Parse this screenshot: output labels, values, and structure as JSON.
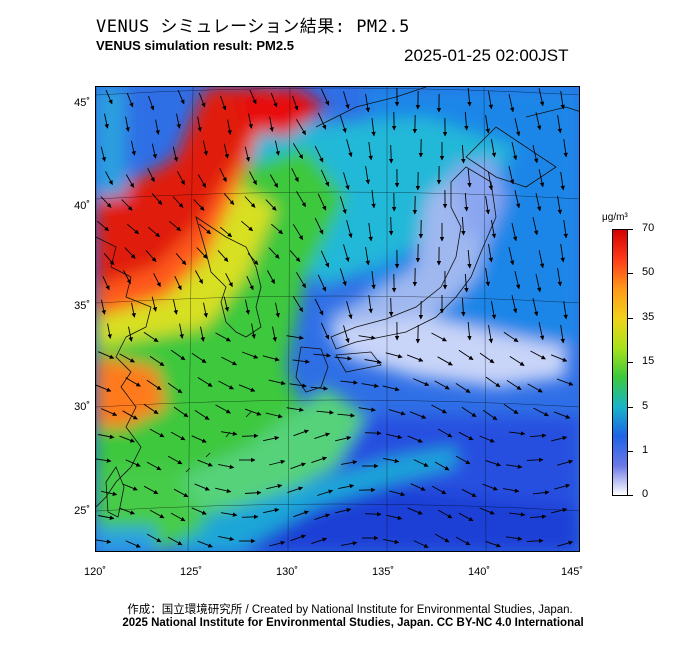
{
  "header": {
    "title_jp": "VENUS シミュレーション結果: PM2.5",
    "title_en": "VENUS simulation result: PM2.5",
    "timestamp": "2025-01-25 02:00JST"
  },
  "map": {
    "pollutant": "PM2.5",
    "lon_range": [
      120,
      145
    ],
    "lat_range": [
      23,
      46
    ],
    "lat_ticks": [
      {
        "value": 45,
        "label": "45˚"
      },
      {
        "value": 40,
        "label": "40˚"
      },
      {
        "value": 35,
        "label": "35˚"
      },
      {
        "value": 30,
        "label": "30˚"
      },
      {
        "value": 25,
        "label": "25˚"
      }
    ],
    "lon_ticks": [
      {
        "value": 120,
        "label": "120˚"
      },
      {
        "value": 125,
        "label": "125˚"
      },
      {
        "value": 130,
        "label": "130˚"
      },
      {
        "value": 135,
        "label": "135˚"
      },
      {
        "value": 140,
        "label": "140˚"
      },
      {
        "value": 145,
        "label": "145˚"
      }
    ],
    "wind_field": "northwesterly monsoon over Sea of Japan and East China Sea; westerly south of Japan"
  },
  "colorbar": {
    "unit": "μg/m³",
    "labels": [
      "70",
      "50",
      "35",
      "15",
      "5",
      "1",
      "0"
    ],
    "colors": [
      "#d40000",
      "#ff3b1a",
      "#ff9a1a",
      "#f2d21a",
      "#a8e21a",
      "#3cc83c",
      "#18b4c8",
      "#1e64e6",
      "#6a78e6",
      "#ffffff"
    ]
  },
  "footer": {
    "credit_line_1": "作成：国立環境研究所 / Created by National Institute for Environmental Studies, Japan.",
    "credit_line_2": "2025 National Institute for Environmental Studies, Japan. CC BY-NC 4.0 International"
  }
}
